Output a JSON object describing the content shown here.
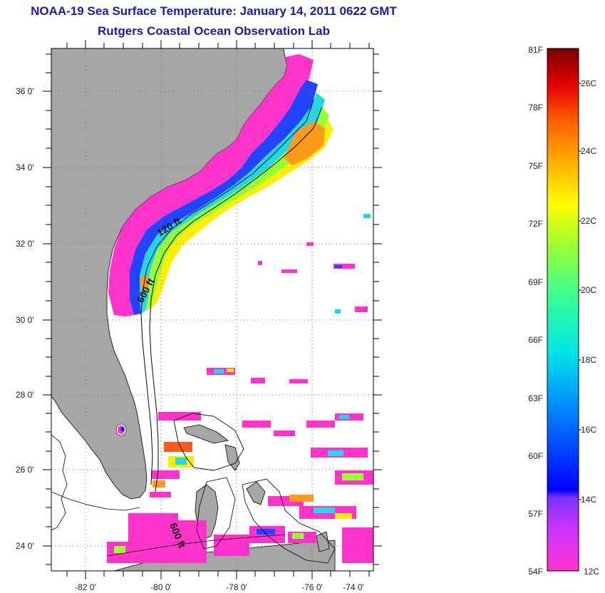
{
  "header": {
    "title": "NOAA-19 Sea Surface Temperature:  January 14, 2011 0622 GMT",
    "subtitle": "Rutgers Coastal Ocean Observation Lab"
  },
  "map": {
    "lon_range": [
      -83,
      -73
    ],
    "lat_range": [
      23,
      37
    ],
    "x_ticks": [
      {
        "value": -82,
        "label": "-82 0'"
      },
      {
        "value": -80,
        "label": "-80 0'"
      },
      {
        "value": -78,
        "label": "-78 0'"
      },
      {
        "value": -76,
        "label": "-76 0'"
      },
      {
        "value": -74,
        "label": "-74 0'"
      }
    ],
    "y_ticks": [
      {
        "value": 36,
        "label": "36 0'"
      },
      {
        "value": 34,
        "label": "34 0'"
      },
      {
        "value": 32,
        "label": "32 0'"
      },
      {
        "value": 30,
        "label": "30 0'"
      },
      {
        "value": 28,
        "label": "28 0'"
      },
      {
        "value": 26,
        "label": "26 0'"
      },
      {
        "value": 24,
        "label": "24 0'"
      }
    ],
    "isobath_labels": [
      {
        "text": "120 ft"
      },
      {
        "text": "600 ft"
      },
      {
        "text": "600 ft"
      }
    ],
    "colors": {
      "land": "#a6a6a6",
      "grid": "#555555",
      "coastline": "#000000"
    }
  },
  "colorbar": {
    "range_f": [
      54,
      81
    ],
    "fahrenheit_labels": [
      "81F",
      "78F",
      "75F",
      "72F",
      "69F",
      "66F",
      "63F",
      "60F",
      "57F",
      "54F"
    ],
    "celsius_labels": [
      "26C",
      "24C",
      "22C",
      "20C",
      "18C",
      "16C",
      "14C",
      "12C"
    ],
    "palette": [
      "#ff33cc",
      "#9933ff",
      "#0000ff",
      "#0099ff",
      "#00e6e6",
      "#33ff99",
      "#99ff33",
      "#ffff00",
      "#ffbf00",
      "#ff8000",
      "#ff3300",
      "#e60000",
      "#800000"
    ]
  }
}
